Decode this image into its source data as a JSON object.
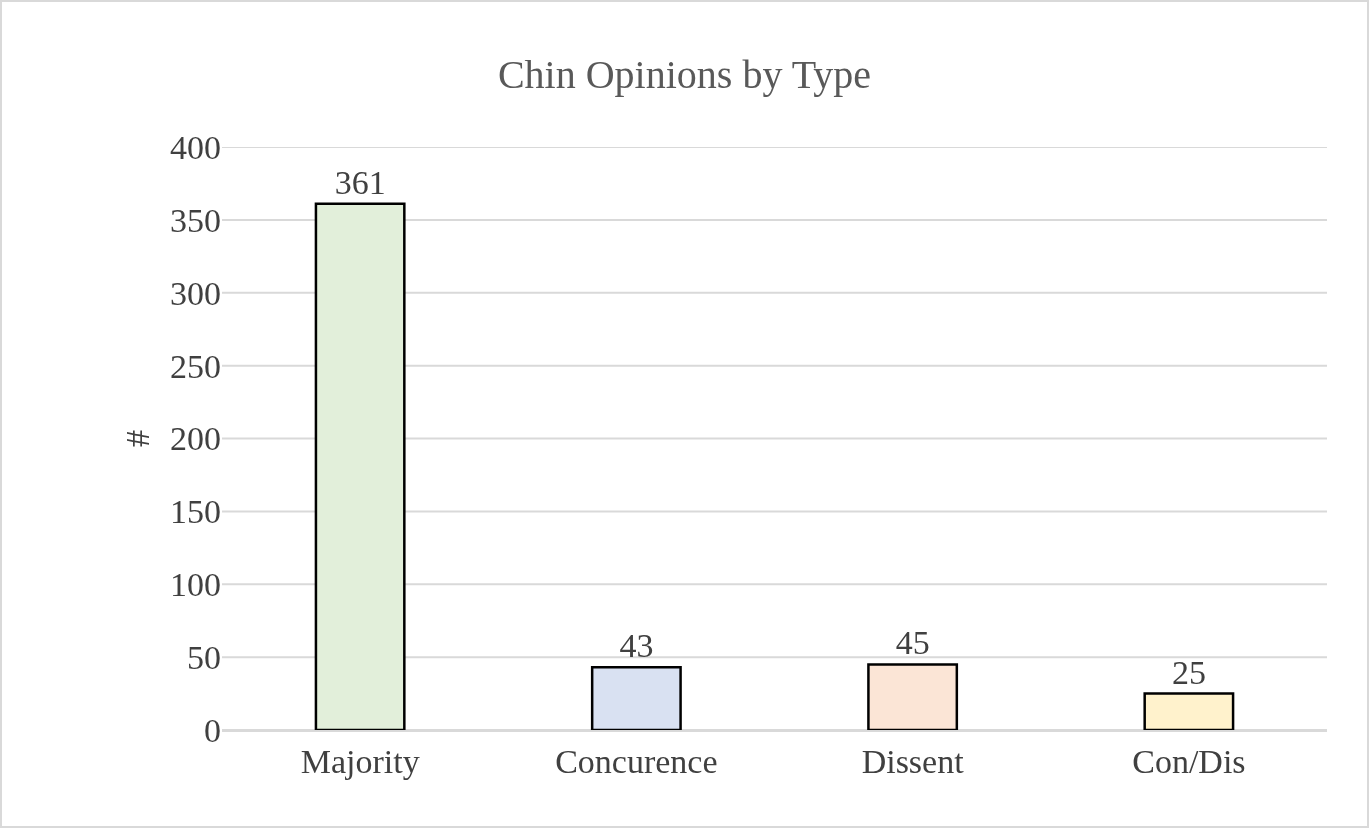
{
  "chart_data": {
    "type": "bar",
    "title": "Chin Opinions by Type",
    "ylabel": "#",
    "categories": [
      "Majority",
      "Concurence",
      "Dissent",
      "Con/Dis"
    ],
    "values": [
      361,
      43,
      45,
      25
    ],
    "colors": [
      "#e2efda",
      "#d9e1f2",
      "#fbe5d6",
      "#fff2cc"
    ],
    "ylim": [
      0,
      400
    ],
    "yticks": [
      0,
      50,
      100,
      150,
      200,
      250,
      300,
      350,
      400
    ],
    "grid": "y",
    "data_labels": true
  }
}
